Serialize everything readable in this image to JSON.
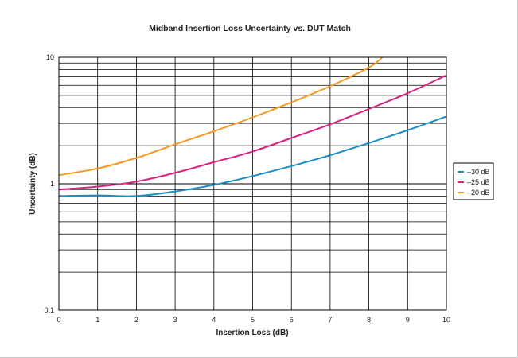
{
  "chart_data": {
    "type": "line",
    "title": "Midband Insertion Loss Uncertainty vs. DUT Match",
    "xlabel": "Insertion Loss (dB)",
    "ylabel": "Uncertainty (dB)",
    "xlim": [
      0,
      10
    ],
    "ylim": [
      0.1,
      10
    ],
    "yscale": "log",
    "grid": true,
    "legend_position": "right",
    "x_ticks": [
      "0",
      "1",
      "2",
      "3",
      "4",
      "5",
      "6",
      "7",
      "8",
      "9",
      "10"
    ],
    "y_ticks": [
      "0.1",
      "1",
      "10"
    ],
    "series": [
      {
        "name": "–30 dB",
        "color": "#1a8dc4",
        "x": [
          0,
          1,
          2,
          3,
          4,
          5,
          6,
          7,
          8,
          9,
          10
        ],
        "y": [
          0.8,
          0.81,
          0.8,
          0.87,
          0.98,
          1.15,
          1.38,
          1.68,
          2.1,
          2.65,
          3.4
        ]
      },
      {
        "name": "–25 dB",
        "color": "#d8237e",
        "x": [
          0,
          1,
          2,
          3,
          4,
          5,
          6,
          7,
          8,
          9,
          10
        ],
        "y": [
          0.9,
          0.95,
          1.04,
          1.22,
          1.48,
          1.8,
          2.3,
          2.95,
          3.9,
          5.2,
          7.2
        ]
      },
      {
        "name": "–20 dB",
        "color": "#f29a21",
        "x": [
          0,
          1,
          2,
          3,
          4,
          5,
          6,
          7,
          8,
          8.35
        ],
        "y": [
          1.17,
          1.32,
          1.6,
          2.05,
          2.6,
          3.35,
          4.4,
          5.9,
          8.3,
          10
        ]
      }
    ]
  }
}
